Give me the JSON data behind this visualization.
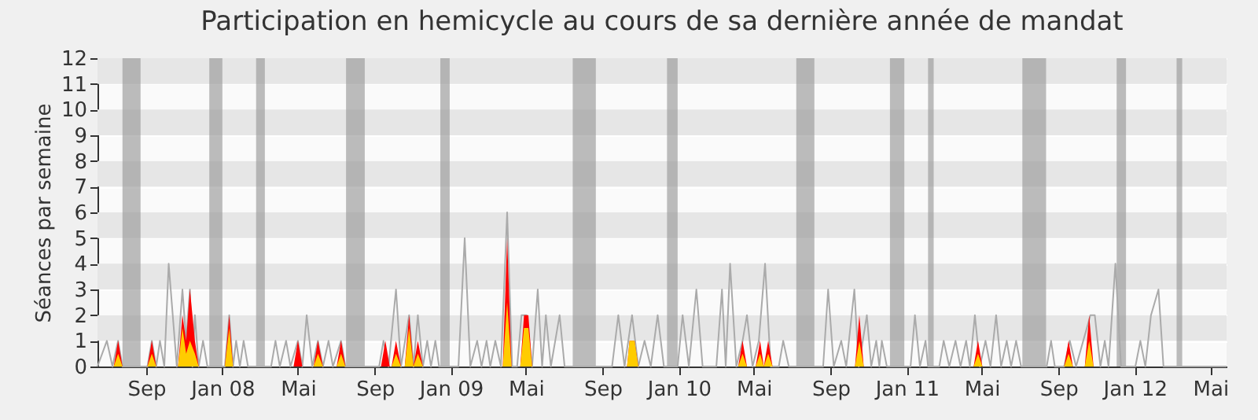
{
  "chart_data": {
    "type": "area",
    "title": "Participation en hemicycle au cours de sa dernière année de mandat",
    "ylabel": "Séances par semaine",
    "xlim": [
      "2007-06-15",
      "2012-05-27"
    ],
    "xticks": [
      {
        "value": "2007-09-01",
        "label": "Sep"
      },
      {
        "value": "2008-01-01",
        "label": "Jan 08"
      },
      {
        "value": "2008-05-01",
        "label": "Mai"
      },
      {
        "value": "2008-09-01",
        "label": "Sep"
      },
      {
        "value": "2009-01-01",
        "label": "Jan 09"
      },
      {
        "value": "2009-05-01",
        "label": "Mai"
      },
      {
        "value": "2009-09-01",
        "label": "Sep"
      },
      {
        "value": "2010-01-01",
        "label": "Jan 10"
      },
      {
        "value": "2010-05-01",
        "label": "Mai"
      },
      {
        "value": "2010-09-01",
        "label": "Sep"
      },
      {
        "value": "2011-01-01",
        "label": "Jan 11"
      },
      {
        "value": "2011-05-01",
        "label": "Mai"
      },
      {
        "value": "2011-09-01",
        "label": "Sep"
      },
      {
        "value": "2012-01-01",
        "label": "Jan 12"
      },
      {
        "value": "2012-05-01",
        "label": "Mai"
      }
    ],
    "ylim": [
      0,
      12
    ],
    "yticks": [
      0,
      1,
      2,
      3,
      4,
      5,
      6,
      7,
      8,
      9,
      10,
      11,
      12
    ],
    "grid": true,
    "bands": [
      {
        "axis": "x",
        "from": "2007-07-25",
        "to": "2007-08-23",
        "color": "#999999"
      },
      {
        "axis": "x",
        "from": "2007-12-11",
        "to": "2008-01-01",
        "color": "#999999"
      },
      {
        "axis": "x",
        "from": "2008-02-24",
        "to": "2008-03-09",
        "color": "#999999"
      },
      {
        "axis": "x",
        "from": "2008-07-17",
        "to": "2008-08-16",
        "color": "#999999"
      },
      {
        "axis": "x",
        "from": "2008-12-15",
        "to": "2008-12-30",
        "color": "#999999"
      },
      {
        "axis": "x",
        "from": "2009-07-15",
        "to": "2009-08-21",
        "color": "#999999"
      },
      {
        "axis": "x",
        "from": "2009-12-13",
        "to": "2009-12-30",
        "color": "#999999"
      },
      {
        "axis": "x",
        "from": "2010-07-08",
        "to": "2010-08-06",
        "color": "#999999"
      },
      {
        "axis": "x",
        "from": "2010-12-05",
        "to": "2010-12-28",
        "color": "#999999"
      },
      {
        "axis": "x",
        "from": "2011-02-04",
        "to": "2011-02-13",
        "color": "#999999"
      },
      {
        "axis": "x",
        "from": "2011-07-05",
        "to": "2011-08-12",
        "color": "#999999"
      },
      {
        "axis": "x",
        "from": "2011-12-03",
        "to": "2011-12-18",
        "color": "#999999"
      },
      {
        "axis": "x",
        "from": "2012-03-08",
        "to": "2012-03-17",
        "color": "#999999"
      }
    ],
    "series": [
      {
        "type": "line",
        "color": "#aaaaaa",
        "x": [
          "2007-06-15",
          "2007-06-30",
          "2007-07-09",
          "2007-07-18",
          "2007-07-25",
          "2007-09-03",
          "2007-09-10",
          "2007-09-17",
          "2007-09-23",
          "2007-09-30",
          "2007-10-07",
          "2007-10-20",
          "2007-10-29",
          "2007-11-04",
          "2007-11-10",
          "2007-11-14",
          "2007-11-18",
          "2007-11-24",
          "2007-12-01",
          "2007-12-08",
          "2008-01-05",
          "2008-01-12",
          "2008-01-18",
          "2008-01-23",
          "2008-01-29",
          "2008-02-04",
          "2008-02-11",
          "2008-03-19",
          "2008-03-26",
          "2008-04-02",
          "2008-04-12",
          "2008-04-19",
          "2008-05-01",
          "2008-05-08",
          "2008-05-15",
          "2008-05-24",
          "2008-06-02",
          "2008-06-10",
          "2008-06-19",
          "2008-06-26",
          "2008-07-09",
          "2008-07-16",
          "2008-09-08",
          "2008-09-15",
          "2008-09-23",
          "2008-10-05",
          "2008-10-13",
          "2008-10-26",
          "2008-11-02",
          "2008-11-09",
          "2008-11-17",
          "2008-11-24",
          "2008-11-30",
          "2008-12-07",
          "2008-12-13",
          "2009-01-13",
          "2009-01-23",
          "2009-02-01",
          "2009-02-12",
          "2009-02-19",
          "2009-02-27",
          "2009-03-05",
          "2009-03-13",
          "2009-03-22",
          "2009-04-01",
          "2009-04-09",
          "2009-04-17",
          "2009-04-24",
          "2009-05-02",
          "2009-05-11",
          "2009-05-20",
          "2009-05-27",
          "2009-06-02",
          "2009-06-10",
          "2009-06-24",
          "2009-07-02",
          "2009-09-16",
          "2009-09-26",
          "2009-10-06",
          "2009-10-18",
          "2009-10-28",
          "2009-11-07",
          "2009-11-17",
          "2009-11-28",
          "2009-12-08",
          "2009-12-30",
          "2010-01-07",
          "2010-01-17",
          "2010-01-29",
          "2010-02-08",
          "2010-03-02",
          "2010-03-11",
          "2010-03-17",
          "2010-03-24",
          "2010-04-03",
          "2010-04-13",
          "2010-04-20",
          "2010-04-29",
          "2010-05-09",
          "2010-05-19",
          "2010-05-28",
          "2010-06-10",
          "2010-06-17",
          "2010-06-26",
          "2010-08-20",
          "2010-08-28",
          "2010-09-06",
          "2010-09-18",
          "2010-09-26",
          "2010-10-09",
          "2010-10-16",
          "2010-10-29",
          "2010-11-05",
          "2010-11-13",
          "2010-11-18",
          "2010-11-22",
          "2010-11-30",
          "2011-01-07",
          "2011-01-14",
          "2011-01-22",
          "2011-01-31",
          "2011-02-04",
          "2011-02-22",
          "2011-03-01",
          "2011-03-10",
          "2011-03-20",
          "2011-03-28",
          "2011-04-06",
          "2011-04-12",
          "2011-04-20",
          "2011-04-28",
          "2011-05-07",
          "2011-05-15",
          "2011-05-24",
          "2011-06-01",
          "2011-06-10",
          "2011-06-17",
          "2011-06-25",
          "2011-07-03",
          "2011-08-13",
          "2011-08-20",
          "2011-08-26",
          "2011-09-10",
          "2011-09-19",
          "2011-09-29",
          "2011-10-22",
          "2011-10-29",
          "2011-11-07",
          "2011-11-14",
          "2011-11-20",
          "2011-12-01",
          "2011-12-10",
          "2012-01-02",
          "2012-01-10",
          "2012-01-18",
          "2012-01-27",
          "2012-02-08",
          "2012-02-16",
          "2012-05-27"
        ],
        "values": [
          0,
          1,
          0,
          1,
          0,
          0,
          1,
          0,
          1,
          0,
          4,
          0,
          3,
          1,
          3,
          0,
          2,
          0,
          1,
          0,
          0,
          2,
          0,
          1,
          0,
          1,
          0,
          0,
          1,
          0,
          1,
          0,
          1,
          0,
          2,
          0,
          1,
          0,
          1,
          0,
          1,
          0,
          0,
          1,
          0,
          3,
          0,
          2,
          0,
          2,
          0,
          1,
          0,
          1,
          0,
          0,
          5,
          0,
          1,
          0,
          1,
          0,
          1,
          0,
          6,
          0,
          0,
          2,
          2,
          0,
          3,
          0,
          2,
          0,
          2,
          0,
          0,
          2,
          0,
          2,
          0,
          1,
          0,
          2,
          0,
          0,
          2,
          0,
          3,
          0,
          0,
          3,
          0,
          4,
          0,
          1,
          2,
          0,
          1,
          4,
          0,
          0,
          1,
          0,
          0,
          3,
          0,
          1,
          0,
          3,
          0,
          2,
          0,
          1,
          0,
          1,
          0,
          0,
          2,
          0,
          1,
          0,
          0,
          1,
          0,
          1,
          0,
          1,
          0,
          2,
          0,
          1,
          0,
          2,
          0,
          1,
          0,
          1,
          0,
          0,
          1,
          0,
          0,
          1,
          0,
          2,
          2,
          0,
          1,
          0,
          4,
          0,
          0,
          1,
          0,
          2,
          3,
          0,
          0
        ]
      },
      {
        "type": "area",
        "color": "#ff0000",
        "x": [
          "2007-07-11",
          "2007-07-18",
          "2007-07-25",
          "2007-09-03",
          "2007-09-10",
          "2007-09-17",
          "2007-10-22",
          "2007-10-29",
          "2007-11-04",
          "2007-11-10",
          "2007-11-18",
          "2007-11-24",
          "2008-01-05",
          "2008-01-12",
          "2008-01-18",
          "2008-04-24",
          "2008-05-01",
          "2008-05-08",
          "2008-05-26",
          "2008-06-02",
          "2008-06-10",
          "2008-07-02",
          "2008-07-09",
          "2008-07-16",
          "2008-09-11",
          "2008-09-18",
          "2008-09-25",
          "2008-09-28",
          "2008-10-05",
          "2008-10-13",
          "2008-10-19",
          "2008-10-26",
          "2008-11-02",
          "2008-11-09",
          "2008-11-17",
          "2009-03-25",
          "2009-04-01",
          "2009-04-08",
          "2009-04-22",
          "2009-04-28",
          "2009-05-05",
          "2009-05-11",
          "2009-10-10",
          "2009-10-14",
          "2009-10-22",
          "2009-10-28",
          "2010-04-06",
          "2010-04-13",
          "2010-04-20",
          "2010-05-04",
          "2010-05-11",
          "2010-05-17",
          "2010-05-24",
          "2010-05-31",
          "2010-10-10",
          "2010-10-17",
          "2010-10-24",
          "2011-04-18",
          "2011-04-25",
          "2011-05-02",
          "2011-09-10",
          "2011-09-17",
          "2011-09-24",
          "2011-10-13",
          "2011-10-20",
          "2011-10-27"
        ],
        "values": [
          0,
          1,
          0,
          0,
          1,
          0,
          0,
          2,
          1,
          3,
          1,
          0,
          0,
          2,
          0,
          0,
          1,
          0,
          0,
          1,
          0,
          0,
          1,
          0,
          0,
          1,
          0,
          0,
          1,
          0,
          0,
          2,
          0,
          1,
          0,
          0,
          5,
          0,
          0,
          2,
          2,
          0,
          0,
          1,
          1,
          0,
          0,
          1,
          0,
          0,
          1,
          0,
          1,
          0,
          0,
          2,
          0,
          0,
          1,
          0,
          0,
          1,
          0,
          0,
          2,
          0
        ]
      },
      {
        "type": "area",
        "color": "#ffcc00",
        "x": [
          "2007-07-11",
          "2007-07-18",
          "2007-07-25",
          "2007-09-03",
          "2007-09-10",
          "2007-09-17",
          "2007-10-22",
          "2007-10-29",
          "2007-11-04",
          "2007-11-10",
          "2007-11-18",
          "2007-11-24",
          "2008-01-05",
          "2008-01-12",
          "2008-01-18",
          "2008-04-24",
          "2008-05-01",
          "2008-05-08",
          "2008-05-26",
          "2008-06-02",
          "2008-06-10",
          "2008-07-02",
          "2008-07-09",
          "2008-07-16",
          "2008-09-11",
          "2008-09-18",
          "2008-09-25",
          "2008-09-28",
          "2008-10-05",
          "2008-10-13",
          "2008-10-19",
          "2008-10-26",
          "2008-11-02",
          "2008-11-09",
          "2008-11-17",
          "2009-03-25",
          "2009-04-01",
          "2009-04-08",
          "2009-04-22",
          "2009-04-28",
          "2009-05-05",
          "2009-05-11",
          "2009-10-10",
          "2009-10-14",
          "2009-10-22",
          "2009-10-28",
          "2010-04-06",
          "2010-04-13",
          "2010-04-20",
          "2010-05-04",
          "2010-05-11",
          "2010-05-17",
          "2010-05-24",
          "2010-05-31",
          "2010-10-10",
          "2010-10-17",
          "2010-10-24",
          "2011-04-18",
          "2011-04-25",
          "2011-05-02",
          "2011-09-10",
          "2011-09-17",
          "2011-09-24",
          "2011-10-13",
          "2011-10-20",
          "2011-10-27"
        ],
        "values": [
          0,
          0.5,
          0,
          0,
          0.5,
          0,
          0,
          1.5,
          0.5,
          1,
          0.5,
          0,
          0,
          1.5,
          0,
          0,
          0,
          0,
          0,
          0.5,
          0,
          0,
          0.5,
          0,
          0,
          0,
          0,
          0,
          0.5,
          0,
          0,
          1.5,
          0,
          0.5,
          0,
          0,
          2.5,
          0,
          0,
          1.5,
          1.5,
          0,
          0,
          1,
          1,
          0,
          0,
          0.5,
          0,
          0,
          0.5,
          0,
          0.5,
          0,
          0,
          1,
          0,
          0,
          0.5,
          0,
          0,
          0.5,
          0,
          0,
          1,
          0
        ]
      }
    ]
  }
}
